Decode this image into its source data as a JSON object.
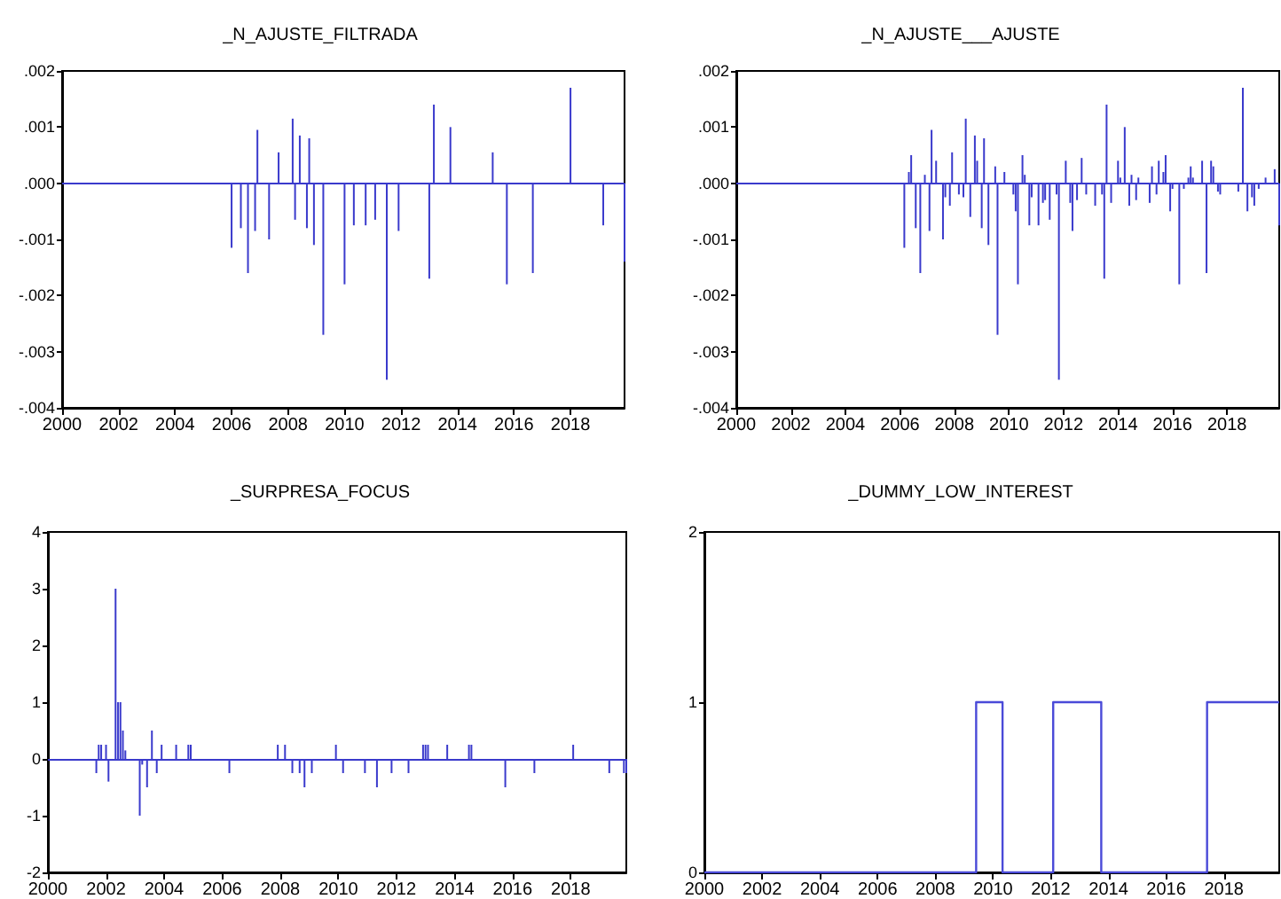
{
  "chart_data": [
    {
      "type": "bar",
      "title": "_N_AJUSTE_FILTRADA",
      "color": "#3a3acc",
      "x": [
        "2006-01",
        "2006-05",
        "2006-08",
        "2006-11",
        "2006-12",
        "2007-05",
        "2007-09",
        "2008-03",
        "2008-04",
        "2008-06",
        "2008-09",
        "2008-10",
        "2008-12",
        "2009-04",
        "2010-01",
        "2010-05",
        "2010-10",
        "2011-02",
        "2011-07",
        "2011-12",
        "2013-01",
        "2013-03",
        "2013-10",
        "2015-04",
        "2015-10",
        "2016-09",
        "2018-01",
        "2019-03",
        "2019-12"
      ],
      "values": [
        -0.00115,
        -0.0008,
        -0.0016,
        -0.00085,
        0.00095,
        -0.001,
        0.00055,
        0.00115,
        -0.00065,
        0.00085,
        -0.0008,
        0.0008,
        -0.0011,
        -0.0027,
        -0.0018,
        -0.00075,
        -0.00075,
        -0.00065,
        -0.0035,
        -0.00085,
        -0.0017,
        0.0014,
        0.001,
        0.00055,
        -0.0018,
        -0.0016,
        0.0017,
        -0.00075,
        -0.0014
      ],
      "xlim": [
        "2000-01",
        "2019-12"
      ],
      "ylim": [
        -0.004,
        0.002
      ],
      "xticks": [
        "2000",
        "2002",
        "2004",
        "2006",
        "2008",
        "2010",
        "2012",
        "2014",
        "2016",
        "2018"
      ],
      "yticks": [
        {
          "value": -0.004,
          "label": "-.004"
        },
        {
          "value": -0.003,
          "label": "-.003"
        },
        {
          "value": -0.002,
          "label": "-.002"
        },
        {
          "value": -0.001,
          "label": "-.001"
        },
        {
          "value": 0,
          "label": ".000"
        },
        {
          "value": 0.001,
          "label": ".001"
        },
        {
          "value": 0.002,
          "label": ".002"
        }
      ],
      "ref_lines": [
        {
          "axis": "y",
          "value": 0,
          "color": "#3a3acc"
        }
      ]
    },
    {
      "type": "bar",
      "title": "_N_AJUSTE___AJUSTE",
      "color": "#3a3acc",
      "x": [
        "2006-03",
        "2006-05",
        "2006-06",
        "2006-08",
        "2006-10",
        "2006-12",
        "2007-02",
        "2007-03",
        "2007-05",
        "2007-08",
        "2007-09",
        "2007-11",
        "2007-12",
        "2008-03",
        "2008-05",
        "2008-06",
        "2008-08",
        "2008-10",
        "2008-11",
        "2009-01",
        "2009-02",
        "2009-04",
        "2009-07",
        "2009-08",
        "2009-11",
        "2010-03",
        "2010-04",
        "2010-05",
        "2010-07",
        "2010-08",
        "2010-10",
        "2010-11",
        "2011-02",
        "2011-04",
        "2011-05",
        "2011-07",
        "2011-10",
        "2011-11",
        "2012-02",
        "2012-04",
        "2012-05",
        "2012-07",
        "2012-09",
        "2012-11",
        "2013-03",
        "2013-06",
        "2013-07",
        "2013-08",
        "2013-10",
        "2014-01",
        "2014-02",
        "2014-04",
        "2014-06",
        "2014-07",
        "2014-09",
        "2014-10",
        "2015-03",
        "2015-04",
        "2015-06",
        "2015-07",
        "2015-09",
        "2015-10",
        "2015-12",
        "2016-01",
        "2016-04",
        "2016-06",
        "2016-08",
        "2016-09",
        "2016-10",
        "2017-02",
        "2017-04",
        "2017-06",
        "2017-07",
        "2017-09",
        "2017-10",
        "2018-06",
        "2018-08",
        "2018-10",
        "2018-12",
        "2019-01",
        "2019-03",
        "2019-06",
        "2019-10",
        "2019-12"
      ],
      "values": [
        -0.00115,
        0.0002,
        0.0005,
        -0.0008,
        -0.0016,
        0.00015,
        -0.00085,
        0.00095,
        0.0004,
        -0.001,
        -0.00025,
        -0.0004,
        0.00055,
        -0.0002,
        -0.00025,
        0.00115,
        -0.0006,
        0.00085,
        0.0004,
        -0.0008,
        0.0008,
        -0.0011,
        0.0003,
        -0.0027,
        0.0002,
        -0.0002,
        -0.0005,
        -0.0018,
        0.0005,
        0.00015,
        -0.00075,
        -0.00025,
        -0.00075,
        -0.00035,
        -0.0003,
        -0.00065,
        -0.0002,
        -0.0035,
        0.0004,
        -0.00035,
        -0.00085,
        -0.0003,
        0.00045,
        -0.0002,
        -0.0004,
        -0.0002,
        -0.0017,
        0.0014,
        -0.00035,
        0.0004,
        0.0001,
        0.001,
        -0.0004,
        0.00015,
        -0.0003,
        0.0001,
        -0.00035,
        0.0003,
        -0.0002,
        0.0004,
        0.0002,
        0.0005,
        -0.0005,
        -0.0001,
        -0.0018,
        -0.0001,
        0.0001,
        0.0003,
        0.0001,
        0.0004,
        -0.0016,
        0.0004,
        0.0003,
        -0.00015,
        -0.0002,
        -0.00015,
        0.0017,
        -0.0005,
        -0.00025,
        -0.0004,
        -0.0001,
        0.0001,
        0.00025,
        -0.00075
      ],
      "xlim": [
        "2000-01",
        "2019-12"
      ],
      "ylim": [
        -0.004,
        0.002
      ],
      "xticks": [
        "2000",
        "2002",
        "2004",
        "2006",
        "2008",
        "2010",
        "2012",
        "2014",
        "2016",
        "2018"
      ],
      "yticks": [
        {
          "value": -0.004,
          "label": "-.004"
        },
        {
          "value": -0.003,
          "label": "-.003"
        },
        {
          "value": -0.002,
          "label": "-.002"
        },
        {
          "value": -0.001,
          "label": "-.001"
        },
        {
          "value": 0,
          "label": ".000"
        },
        {
          "value": 0.001,
          "label": ".001"
        },
        {
          "value": 0.002,
          "label": ".002"
        }
      ],
      "ref_lines": [
        {
          "axis": "y",
          "value": 0,
          "color": "#3a3acc"
        }
      ]
    },
    {
      "type": "bar",
      "title": "_SURPRESA_FOCUS",
      "color": "#3a3acc",
      "x": [
        "2001-09",
        "2001-10",
        "2001-11",
        "2002-01",
        "2002-02",
        "2002-05",
        "2002-06",
        "2002-07",
        "2002-08",
        "2002-09",
        "2003-03",
        "2003-04",
        "2003-06",
        "2003-08",
        "2003-10",
        "2003-12",
        "2004-06",
        "2004-11",
        "2004-12",
        "2006-04",
        "2007-12",
        "2008-03",
        "2008-06",
        "2008-09",
        "2008-11",
        "2009-02",
        "2009-12",
        "2010-03",
        "2010-12",
        "2011-05",
        "2011-11",
        "2012-06",
        "2012-12",
        "2013-01",
        "2013-02",
        "2013-10",
        "2014-07",
        "2014-08",
        "2015-10",
        "2016-10",
        "2018-02",
        "2019-05",
        "2019-11",
        "2019-12"
      ],
      "values": [
        -0.25,
        0.25,
        0.25,
        0.25,
        -0.4,
        3,
        1,
        1,
        0.5,
        0.15,
        -1,
        -0.1,
        -0.5,
        0.5,
        -0.25,
        0.25,
        0.25,
        0.25,
        0.25,
        -0.25,
        0.25,
        0.25,
        -0.25,
        -0.25,
        -0.5,
        -0.25,
        0.25,
        -0.25,
        -0.25,
        -0.5,
        -0.25,
        -0.25,
        0.25,
        0.25,
        0.25,
        0.25,
        0.25,
        0.25,
        -0.5,
        -0.25,
        0.25,
        -0.25,
        -0.25,
        -0.25
      ],
      "xlim": [
        "2000-01",
        "2019-12"
      ],
      "ylim": [
        -2,
        4
      ],
      "xticks": [
        "2000",
        "2002",
        "2004",
        "2006",
        "2008",
        "2010",
        "2012",
        "2014",
        "2016",
        "2018"
      ],
      "yticks": [
        -2,
        -1,
        0,
        1,
        2,
        3,
        4
      ],
      "ref_lines": [
        {
          "axis": "y",
          "value": 0,
          "color": "#3a3acc"
        }
      ]
    },
    {
      "type": "step",
      "title": "_DUMMY_LOW_INTEREST",
      "color": "#4a4ad8",
      "x": [
        "2000-01",
        "2009-06",
        "2010-05",
        "2012-02",
        "2013-10",
        "2017-06",
        "2019-12"
      ],
      "values": [
        0,
        1,
        0,
        1,
        0,
        1,
        1
      ],
      "xlim": [
        "2000-01",
        "2019-12"
      ],
      "ylim": [
        0,
        2
      ],
      "xticks": [
        "2000",
        "2002",
        "2004",
        "2006",
        "2008",
        "2010",
        "2012",
        "2014",
        "2016",
        "2018"
      ],
      "yticks": [
        0,
        1,
        2
      ]
    }
  ]
}
